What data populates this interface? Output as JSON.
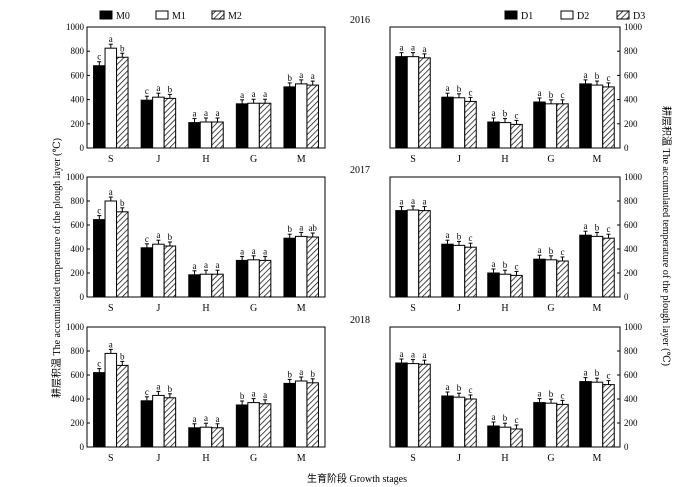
{
  "figure": {
    "left_axis_label": "耕层积温 The accumulated temperature of the plough layer (℃)",
    "right_axis_label": "耕层积温 The accumulated temperature of the plough layer (℃)",
    "x_axis_label": "生育阶段 Growth stages"
  },
  "legends": {
    "left": [
      "M0",
      "M1",
      "M2"
    ],
    "right": [
      "D1",
      "D2",
      "D3"
    ]
  },
  "chart_data": [
    {
      "type": "bar",
      "panel": "left",
      "year": "2016",
      "categories": [
        "S",
        "J",
        "H",
        "G",
        "M"
      ],
      "ylim": [
        0,
        1000
      ],
      "yticks": [
        0,
        200,
        400,
        600,
        800,
        1000
      ],
      "series": [
        {
          "name": "M0",
          "values": [
            680,
            395,
            210,
            365,
            505
          ],
          "letters": [
            "c",
            "c",
            "a",
            "a",
            "b"
          ]
        },
        {
          "name": "M1",
          "values": [
            825,
            420,
            215,
            370,
            530
          ],
          "letters": [
            "a",
            "a",
            "a",
            "a",
            "a"
          ]
        },
        {
          "name": "M2",
          "values": [
            750,
            410,
            215,
            370,
            520
          ],
          "letters": [
            "b",
            "b",
            "a",
            "a",
            "a"
          ]
        }
      ]
    },
    {
      "type": "bar",
      "panel": "right",
      "year": "2016",
      "categories": [
        "S",
        "J",
        "H",
        "G",
        "M"
      ],
      "ylim": [
        0,
        1000
      ],
      "yticks": [
        0,
        200,
        400,
        600,
        800,
        1000
      ],
      "series": [
        {
          "name": "D1",
          "values": [
            755,
            420,
            215,
            380,
            530
          ],
          "letters": [
            "a",
            "a",
            "a",
            "a",
            "a"
          ]
        },
        {
          "name": "D2",
          "values": [
            755,
            415,
            210,
            365,
            520
          ],
          "letters": [
            "a",
            "b",
            "b",
            "b",
            "b"
          ]
        },
        {
          "name": "D3",
          "values": [
            745,
            385,
            195,
            365,
            505
          ],
          "letters": [
            "a",
            "c",
            "c",
            "c",
            "c"
          ]
        }
      ]
    },
    {
      "type": "bar",
      "panel": "left",
      "year": "2017",
      "categories": [
        "S",
        "J",
        "H",
        "G",
        "M"
      ],
      "ylim": [
        0,
        1000
      ],
      "yticks": [
        0,
        200,
        400,
        600,
        800,
        1000
      ],
      "series": [
        {
          "name": "M0",
          "values": [
            645,
            410,
            185,
            305,
            490
          ],
          "letters": [
            "c",
            "c",
            "a",
            "a",
            "b"
          ]
        },
        {
          "name": "M1",
          "values": [
            800,
            440,
            190,
            310,
            505
          ],
          "letters": [
            "a",
            "a",
            "a",
            "a",
            "a"
          ]
        },
        {
          "name": "M2",
          "values": [
            710,
            425,
            190,
            305,
            500
          ],
          "letters": [
            "b",
            "b",
            "a",
            "a",
            "ab"
          ]
        }
      ]
    },
    {
      "type": "bar",
      "panel": "right",
      "year": "2017",
      "categories": [
        "S",
        "J",
        "H",
        "G",
        "M"
      ],
      "ylim": [
        0,
        1000
      ],
      "yticks": [
        0,
        200,
        400,
        600,
        800,
        1000
      ],
      "series": [
        {
          "name": "D1",
          "values": [
            720,
            440,
            200,
            315,
            515
          ],
          "letters": [
            "a",
            "a",
            "a",
            "a",
            "a"
          ]
        },
        {
          "name": "D2",
          "values": [
            725,
            430,
            190,
            310,
            505
          ],
          "letters": [
            "a",
            "b",
            "b",
            "b",
            "b"
          ]
        },
        {
          "name": "D3",
          "values": [
            720,
            415,
            180,
            300,
            490
          ],
          "letters": [
            "a",
            "c",
            "c",
            "c",
            "c"
          ]
        }
      ]
    },
    {
      "type": "bar",
      "panel": "left",
      "year": "2018",
      "categories": [
        "S",
        "J",
        "H",
        "G",
        "M"
      ],
      "ylim": [
        0,
        1000
      ],
      "yticks": [
        0,
        200,
        400,
        600,
        800,
        1000
      ],
      "series": [
        {
          "name": "M0",
          "values": [
            620,
            385,
            160,
            350,
            530
          ],
          "letters": [
            "c",
            "c",
            "a",
            "b",
            "b"
          ]
        },
        {
          "name": "M1",
          "values": [
            780,
            430,
            165,
            370,
            550
          ],
          "letters": [
            "a",
            "a",
            "a",
            "a",
            "a"
          ]
        },
        {
          "name": "M2",
          "values": [
            680,
            410,
            160,
            360,
            535
          ],
          "letters": [
            "b",
            "b",
            "a",
            "a",
            "b"
          ]
        }
      ]
    },
    {
      "type": "bar",
      "panel": "right",
      "year": "2018",
      "categories": [
        "S",
        "J",
        "H",
        "G",
        "M"
      ],
      "ylim": [
        0,
        1000
      ],
      "yticks": [
        0,
        200,
        400,
        600,
        800,
        1000
      ],
      "series": [
        {
          "name": "D1",
          "values": [
            700,
            425,
            175,
            370,
            545
          ],
          "letters": [
            "a",
            "a",
            "a",
            "a",
            "a"
          ]
        },
        {
          "name": "D2",
          "values": [
            695,
            415,
            165,
            365,
            540
          ],
          "letters": [
            "a",
            "b",
            "b",
            "b",
            "b"
          ]
        },
        {
          "name": "D3",
          "values": [
            690,
            400,
            150,
            355,
            520
          ],
          "letters": [
            "a",
            "c",
            "c",
            "c",
            "c"
          ]
        }
      ]
    }
  ]
}
